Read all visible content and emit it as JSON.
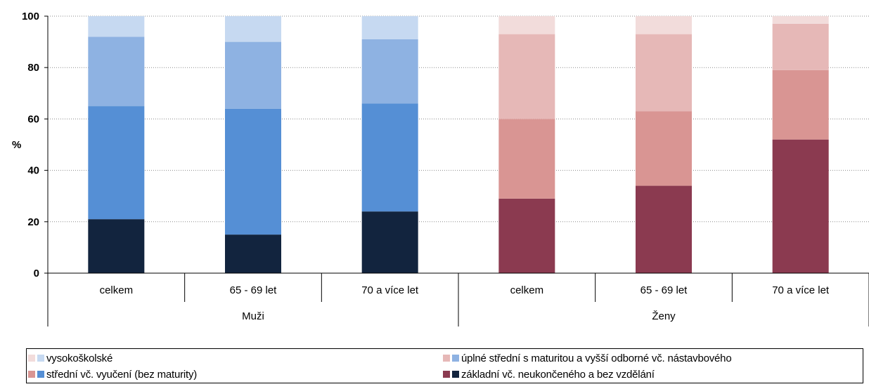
{
  "chart_data": {
    "type": "bar",
    "stacked": true,
    "ylabel": "%",
    "ylim": [
      0,
      100
    ],
    "yticks": [
      0,
      20,
      40,
      60,
      80,
      100
    ],
    "grid": true,
    "groups": [
      {
        "label": "Muži",
        "categories": [
          "celkem",
          "65 - 69 let",
          "70 a více let"
        ]
      },
      {
        "label": "Ženy",
        "categories": [
          "celkem",
          "65 - 69 let",
          "70 a více let"
        ]
      }
    ],
    "series": [
      {
        "name": "základní vč. neukončeného a bez vzdělání",
        "values": [
          21,
          15,
          24,
          29,
          34,
          52
        ],
        "colors": [
          "#12243e",
          "#8b3a50"
        ]
      },
      {
        "name": "střední vč. vyučení (bez maturity)",
        "values": [
          44,
          49,
          42,
          31,
          29,
          27
        ],
        "colors": [
          "#558fd5",
          "#d99593"
        ]
      },
      {
        "name": "úplné střední s maturitou a vyšší odborné vč. nástavbového",
        "values": [
          27,
          26,
          25,
          33,
          30,
          18
        ],
        "colors": [
          "#8eb2e2",
          "#e6b8b7"
        ]
      },
      {
        "name": "vysokoškolské",
        "values": [
          8,
          10,
          9,
          7,
          7,
          3
        ],
        "colors": [
          "#c6d9f1",
          "#f2dcdb"
        ]
      }
    ],
    "legend_position": "bottom"
  }
}
